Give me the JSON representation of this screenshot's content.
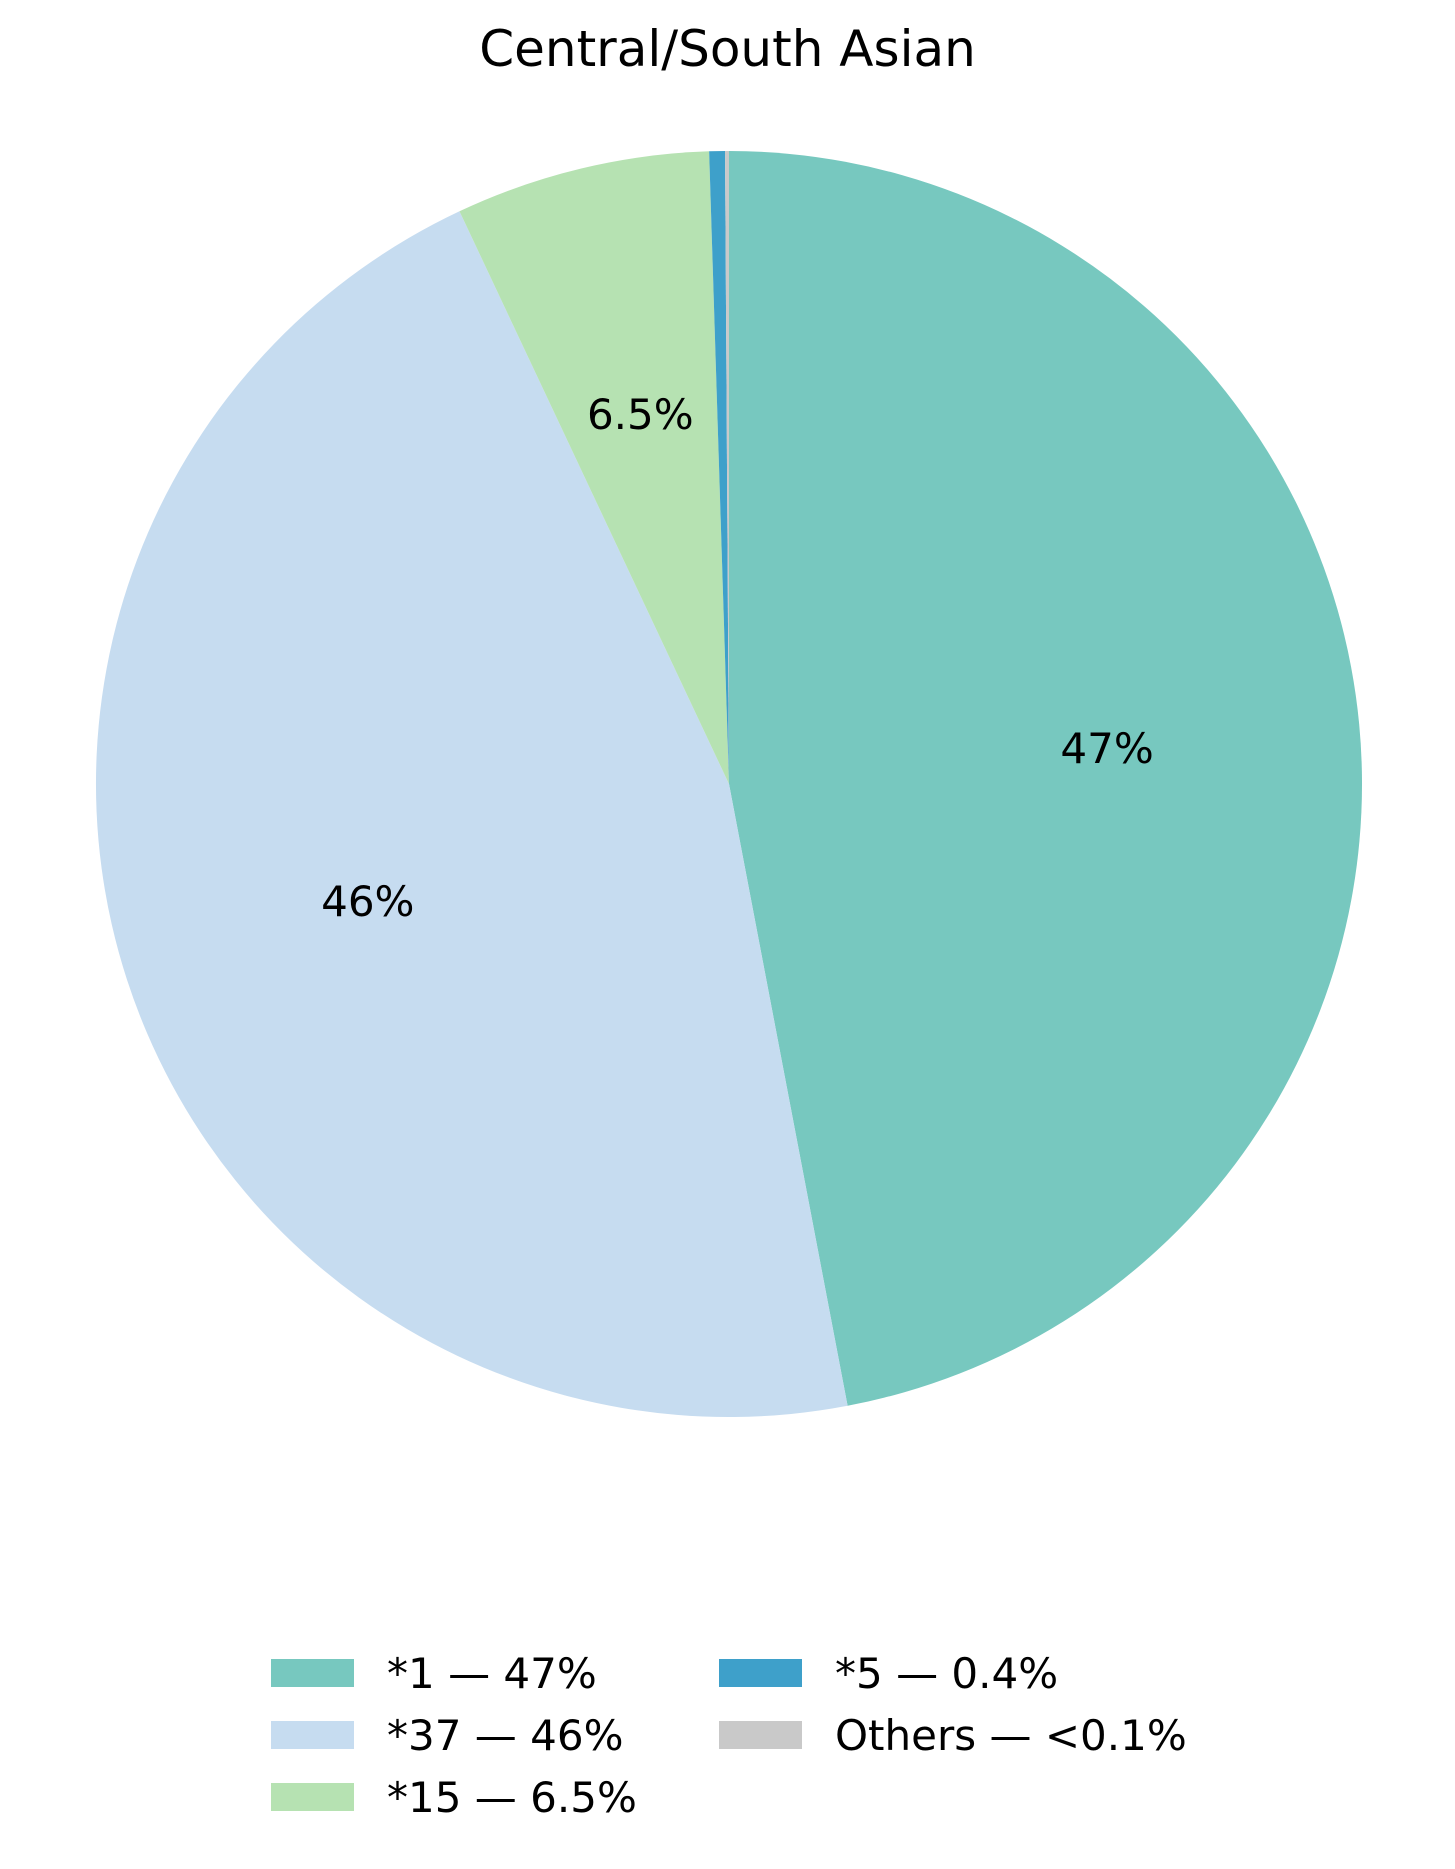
{
  "chart_data": {
    "type": "pie",
    "title": "Central/South Asian",
    "start_angle_deg": 90,
    "direction": "clockwise",
    "legend_position": "bottom",
    "slices": [
      {
        "label": "*1",
        "value_pct": 47,
        "pct_label": "47%",
        "color": "#77c8bf"
      },
      {
        "label": "*37",
        "value_pct": 46,
        "pct_label": "46%",
        "color": "#c6dcf0"
      },
      {
        "label": "*15",
        "value_pct": 6.5,
        "pct_label": "6.5%",
        "color": "#b6e2b2"
      },
      {
        "label": "*5",
        "value_pct": 0.4,
        "pct_label": "",
        "color": "#3ea0ca"
      },
      {
        "label": "Others",
        "value_pct": 0.1,
        "pct_label": "",
        "color": "#c9c9c9"
      }
    ],
    "legend": [
      {
        "label": "*1 — 47%",
        "color": "#77c8bf"
      },
      {
        "label": "*37 — 46%",
        "color": "#c6dcf0"
      },
      {
        "label": "*15 — 6.5%",
        "color": "#b6e2b2"
      },
      {
        "label": "*5 — 0.4%",
        "color": "#3ea0ca"
      },
      {
        "label": "Others — <0.1%",
        "color": "#c9c9c9"
      }
    ]
  }
}
